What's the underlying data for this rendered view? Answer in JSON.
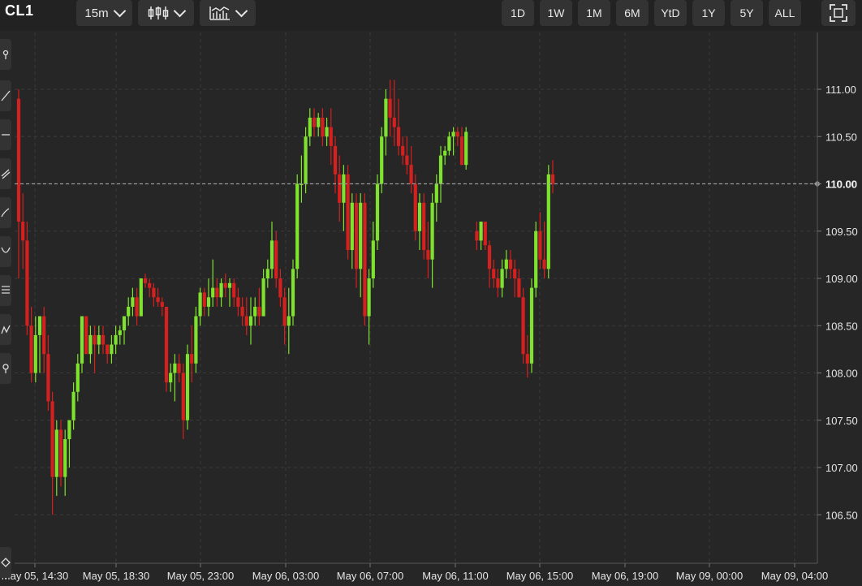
{
  "header": {
    "symbol": "CL1",
    "interval": "15m",
    "chart_type_icon": "candlestick-icon",
    "indicators_icon": "indicators-icon",
    "ranges": [
      "1D",
      "1W",
      "1M",
      "6M",
      "YtD",
      "1Y",
      "5Y",
      "ALL"
    ],
    "fullscreen_icon": "fullscreen-icon"
  },
  "left_tools": [
    "pin-icon",
    "trendline-icon",
    "horizontal-line-icon",
    "channel-icon",
    "brush-icon",
    "curve-icon",
    "fib-retracement-icon",
    "pattern-icon",
    "measure-icon"
  ],
  "colors": {
    "up": "#7ee22e",
    "down": "#d4201e",
    "background": "#262626",
    "grid": "#3a3a3a",
    "last_price_line": "#9a9a9a"
  },
  "chart_data": {
    "type": "candlestick",
    "x_tick_labels": [
      "May 05, 14:30",
      "May 05, 18:30",
      "May 05, 23:00",
      "May 06, 03:00",
      "May 06, 07:00",
      "May 06, 11:00",
      "May 06, 15:00",
      "May 06, 19:00",
      "May 09, 00:00",
      "May 09, 04:00"
    ],
    "y_ticks": [
      106.5,
      107.0,
      107.5,
      108.0,
      108.5,
      109.0,
      109.5,
      110.0,
      110.5,
      111.0
    ],
    "y_tick_labels": [
      "106.50",
      "107.00",
      "107.50",
      "108.00",
      "108.50",
      "109.00",
      "109.50",
      "110.00",
      "110.50",
      "111.00"
    ],
    "ylim": [
      106.1,
      111.5
    ],
    "last_price": 110.0,
    "last_price_label": "110.00",
    "grid": true,
    "candles": [
      [
        110.9,
        111.0,
        109.0,
        109.6
      ],
      [
        109.6,
        109.9,
        109.1,
        109.4
      ],
      [
        109.4,
        109.6,
        108.4,
        108.5
      ],
      [
        108.5,
        108.7,
        107.9,
        108.0
      ],
      [
        108.0,
        108.6,
        107.9,
        108.4
      ],
      [
        108.4,
        108.6,
        108.0,
        108.6
      ],
      [
        108.6,
        108.7,
        108.0,
        108.2
      ],
      [
        108.2,
        108.4,
        107.6,
        107.7
      ],
      [
        107.7,
        107.8,
        106.5,
        106.9
      ],
      [
        106.9,
        107.5,
        106.7,
        107.4
      ],
      [
        107.4,
        107.5,
        106.8,
        106.9
      ],
      [
        106.9,
        107.4,
        106.7,
        107.3
      ],
      [
        107.3,
        107.5,
        107.0,
        107.5
      ],
      [
        107.5,
        107.9,
        107.4,
        107.8
      ],
      [
        107.8,
        108.2,
        107.7,
        108.1
      ],
      [
        108.1,
        108.6,
        108.0,
        108.6
      ],
      [
        108.6,
        108.6,
        108.2,
        108.2
      ],
      [
        108.2,
        108.5,
        108.1,
        108.4
      ],
      [
        108.4,
        108.5,
        108.0,
        108.3
      ],
      [
        108.3,
        108.5,
        108.2,
        108.4
      ],
      [
        108.4,
        108.5,
        108.2,
        108.3
      ],
      [
        108.3,
        108.3,
        108.1,
        108.2
      ],
      [
        108.2,
        108.4,
        108.1,
        108.3
      ],
      [
        108.3,
        108.5,
        108.2,
        108.4
      ],
      [
        108.4,
        108.5,
        108.3,
        108.45
      ],
      [
        108.45,
        108.6,
        108.3,
        108.6
      ],
      [
        108.6,
        108.8,
        108.5,
        108.7
      ],
      [
        108.7,
        108.9,
        108.6,
        108.8
      ],
      [
        108.8,
        108.9,
        108.5,
        108.6
      ],
      [
        108.6,
        109.0,
        108.6,
        109.0
      ],
      [
        109.0,
        109.05,
        108.9,
        108.95
      ],
      [
        108.95,
        109.0,
        108.8,
        108.9
      ],
      [
        108.9,
        108.95,
        108.7,
        108.8
      ],
      [
        108.8,
        108.9,
        108.7,
        108.75
      ],
      [
        108.75,
        108.8,
        108.6,
        108.7
      ],
      [
        108.7,
        108.7,
        107.8,
        107.9
      ],
      [
        107.9,
        108.1,
        107.8,
        108.0
      ],
      [
        108.0,
        108.2,
        107.7,
        108.1
      ],
      [
        108.1,
        108.2,
        107.9,
        108.0
      ],
      [
        108.0,
        108.1,
        107.3,
        107.5
      ],
      [
        107.5,
        108.3,
        107.4,
        108.2
      ],
      [
        108.2,
        108.5,
        107.9,
        108.1
      ],
      [
        108.1,
        108.7,
        108.0,
        108.6
      ],
      [
        108.6,
        108.9,
        108.5,
        108.85
      ],
      [
        108.85,
        108.9,
        108.6,
        108.7
      ],
      [
        108.7,
        109.0,
        108.6,
        108.8
      ],
      [
        108.8,
        109.2,
        108.7,
        108.9
      ],
      [
        108.9,
        109.0,
        108.7,
        108.8
      ],
      [
        108.8,
        109.0,
        108.7,
        108.95
      ],
      [
        108.95,
        109.05,
        108.8,
        108.9
      ],
      [
        108.9,
        109.0,
        108.7,
        108.95
      ],
      [
        108.95,
        109.0,
        108.7,
        108.8
      ],
      [
        108.8,
        108.9,
        108.6,
        108.7
      ],
      [
        108.7,
        108.8,
        108.5,
        108.6
      ],
      [
        108.6,
        108.8,
        108.4,
        108.5
      ],
      [
        108.5,
        108.8,
        108.3,
        108.6
      ],
      [
        108.6,
        108.8,
        108.5,
        108.7
      ],
      [
        108.7,
        108.9,
        108.5,
        108.6
      ],
      [
        108.6,
        109.1,
        108.6,
        109.0
      ],
      [
        109.0,
        109.2,
        108.9,
        109.1
      ],
      [
        109.1,
        109.6,
        109.0,
        109.4
      ],
      [
        109.4,
        109.5,
        108.9,
        109.0
      ],
      [
        109.0,
        109.1,
        108.7,
        108.8
      ],
      [
        108.8,
        108.9,
        108.3,
        108.5
      ],
      [
        108.5,
        108.9,
        108.2,
        108.6
      ],
      [
        108.6,
        109.2,
        108.5,
        109.1
      ],
      [
        109.1,
        110.1,
        109.0,
        110.0
      ],
      [
        110.0,
        110.3,
        109.8,
        110.0
      ],
      [
        110.0,
        110.6,
        109.9,
        110.5
      ],
      [
        110.5,
        110.8,
        110.4,
        110.7
      ],
      [
        110.7,
        110.8,
        110.5,
        110.6
      ],
      [
        110.6,
        110.75,
        110.5,
        110.7
      ],
      [
        110.7,
        110.8,
        110.4,
        110.5
      ],
      [
        110.5,
        110.7,
        110.4,
        110.6
      ],
      [
        110.6,
        110.8,
        110.2,
        110.4
      ],
      [
        110.4,
        110.5,
        109.9,
        110.1
      ],
      [
        110.1,
        110.3,
        109.6,
        109.8
      ],
      [
        109.8,
        110.2,
        109.5,
        110.1
      ],
      [
        110.1,
        110.2,
        109.2,
        109.3
      ],
      [
        109.3,
        109.9,
        109.1,
        109.8
      ],
      [
        109.8,
        109.9,
        108.9,
        109.1
      ],
      [
        109.1,
        109.9,
        108.8,
        109.8
      ],
      [
        109.8,
        109.9,
        108.5,
        108.6
      ],
      [
        108.6,
        109.1,
        108.3,
        109.0
      ],
      [
        109.0,
        109.6,
        108.9,
        109.4
      ],
      [
        109.4,
        110.1,
        109.3,
        110.0
      ],
      [
        110.0,
        110.6,
        109.9,
        110.5
      ],
      [
        110.5,
        111.0,
        110.3,
        110.9
      ],
      [
        110.9,
        111.1,
        110.5,
        110.7
      ],
      [
        110.7,
        111.1,
        110.4,
        110.6
      ],
      [
        110.6,
        110.9,
        110.3,
        110.4
      ],
      [
        110.4,
        110.5,
        110.2,
        110.3
      ],
      [
        110.3,
        110.5,
        110.1,
        110.2
      ],
      [
        110.2,
        110.4,
        109.9,
        110.0
      ],
      [
        110.0,
        110.1,
        109.4,
        109.5
      ],
      [
        109.5,
        109.9,
        109.3,
        109.8
      ],
      [
        109.8,
        109.9,
        109.2,
        109.3
      ],
      [
        109.3,
        109.6,
        109.0,
        109.2
      ],
      [
        109.2,
        109.9,
        108.9,
        109.8
      ],
      [
        109.8,
        110.1,
        109.6,
        110.0
      ],
      [
        110.0,
        110.4,
        109.8,
        110.3
      ],
      [
        110.3,
        110.4,
        110.2,
        110.35
      ],
      [
        110.35,
        110.55,
        110.3,
        110.5
      ],
      [
        110.5,
        110.6,
        110.3,
        110.55
      ],
      [
        110.55,
        110.6,
        110.4,
        110.5
      ],
      [
        110.5,
        110.6,
        110.2,
        110.2
      ],
      [
        110.2,
        110.6,
        110.15,
        110.55
      ],
      [
        109.5,
        109.6,
        109.3,
        109.4
      ],
      [
        109.4,
        109.6,
        109.3,
        109.6
      ],
      [
        109.6,
        109.6,
        109.3,
        109.35
      ],
      [
        109.35,
        109.4,
        108.9,
        109.1
      ],
      [
        109.1,
        109.2,
        108.9,
        109.0
      ],
      [
        109.0,
        109.1,
        108.8,
        108.9
      ],
      [
        108.9,
        109.2,
        108.8,
        109.1
      ],
      [
        109.1,
        109.3,
        109.0,
        109.2
      ],
      [
        109.2,
        109.3,
        109.0,
        109.1
      ],
      [
        109.1,
        109.2,
        108.8,
        109.0
      ],
      [
        109.0,
        109.1,
        108.8,
        108.8
      ],
      [
        108.8,
        108.9,
        108.1,
        108.2
      ],
      [
        108.2,
        108.4,
        107.95,
        108.1
      ],
      [
        108.1,
        109.0,
        108.0,
        108.9
      ],
      [
        108.9,
        109.6,
        108.8,
        109.5
      ],
      [
        109.5,
        109.7,
        109.1,
        109.2
      ],
      [
        109.2,
        109.6,
        109.0,
        109.1
      ],
      [
        109.1,
        110.2,
        109.0,
        110.1
      ],
      [
        110.1,
        110.25,
        109.9,
        110.0
      ]
    ]
  }
}
